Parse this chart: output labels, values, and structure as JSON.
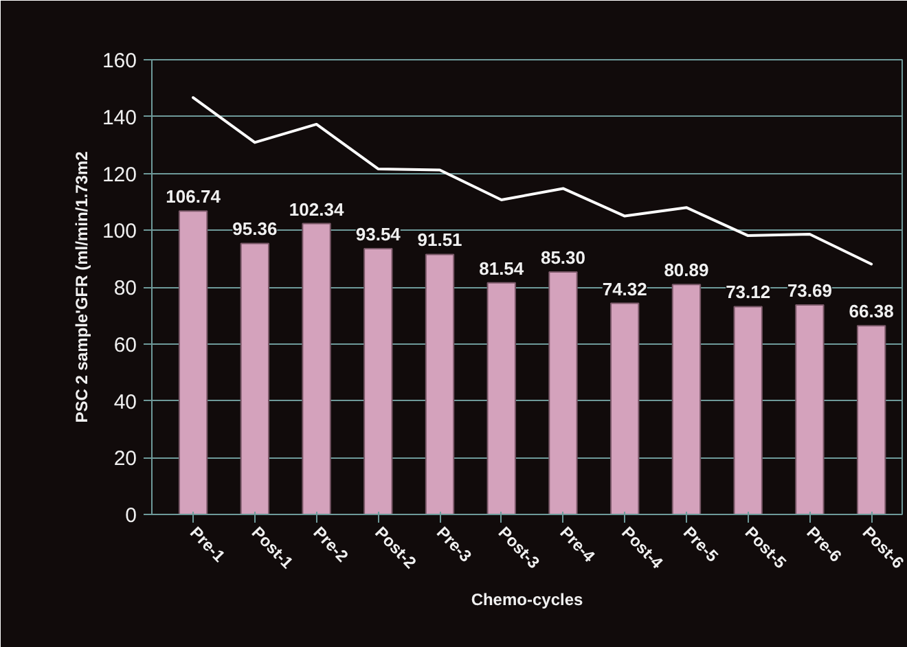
{
  "chart_data": {
    "type": "bar",
    "xlabel": "Chemo-cycles",
    "ylabel": "PSC 2 sample'GFR (ml/min/1.73m2",
    "categories": [
      "Pre-1",
      "Post-1",
      "Pre-2",
      "Post-2",
      "Pre-3",
      "Post-3",
      "Pre-4",
      "Post-4",
      "Pre-5",
      "Post-5",
      "Pre-6",
      "Post-6"
    ],
    "series": [
      {
        "color": "#d4a2bc",
        "values": [
          106.74,
          95.36,
          102.34,
          93.54,
          91.51,
          81.54,
          85.3,
          74.32,
          80.89,
          73.12,
          73.69,
          66.38
        ],
        "value_labels": [
          "106.74",
          "95.36",
          "102.34",
          "93.54",
          "91.51",
          "81.54",
          "85.30",
          "74.32",
          "80.89",
          "73.12",
          "73.69",
          "66.38"
        ]
      },
      {
        "type": "line",
        "color": "#ffffff",
        "values": [
          146.7,
          130.9,
          137.3,
          121.6,
          121.2,
          110.7,
          114.7,
          105.0,
          108.0,
          98.1,
          98.6,
          88.1
        ]
      }
    ],
    "ylim": [
      0,
      160
    ],
    "yticks": [
      0,
      20,
      40,
      60,
      80,
      100,
      120,
      140,
      160
    ],
    "grid": "y"
  }
}
